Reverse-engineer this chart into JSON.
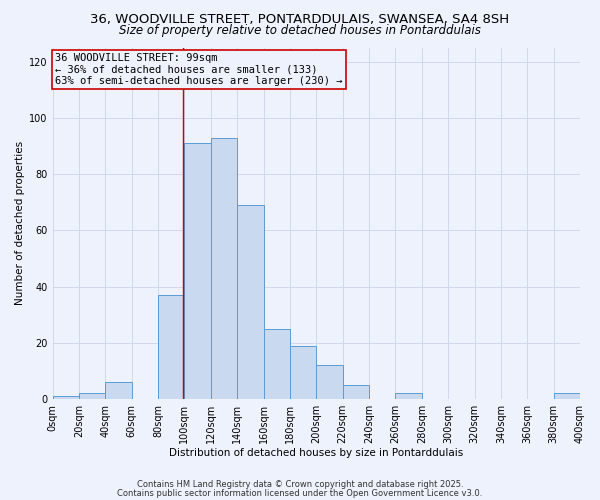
{
  "title1": "36, WOODVILLE STREET, PONTARDDULAIS, SWANSEA, SA4 8SH",
  "title2": "Size of property relative to detached houses in Pontarddulais",
  "xlabel": "Distribution of detached houses by size in Pontarddulais",
  "ylabel": "Number of detached properties",
  "bin_edges": [
    0,
    20,
    40,
    60,
    80,
    100,
    120,
    140,
    160,
    180,
    200,
    220,
    240,
    260,
    280,
    300,
    320,
    340,
    360,
    380,
    400
  ],
  "counts": [
    1,
    2,
    6,
    0,
    37,
    91,
    93,
    69,
    25,
    19,
    12,
    5,
    0,
    2,
    0,
    0,
    0,
    0,
    0,
    2
  ],
  "bar_fill": "#c9d9f0",
  "bar_edge": "#5b9bd5",
  "vline_x": 99,
  "vline_color": "#cc0000",
  "annotation_title": "36 WOODVILLE STREET: 99sqm",
  "annotation_line2": "← 36% of detached houses are smaller (133)",
  "annotation_line3": "63% of semi-detached houses are larger (230) →",
  "annotation_box_edge": "#cc0000",
  "ylim": [
    0,
    125
  ],
  "yticks": [
    0,
    20,
    40,
    60,
    80,
    100,
    120
  ],
  "xtick_labels": [
    "0sqm",
    "20sqm",
    "40sqm",
    "60sqm",
    "80sqm",
    "100sqm",
    "120sqm",
    "140sqm",
    "160sqm",
    "180sqm",
    "200sqm",
    "220sqm",
    "240sqm",
    "260sqm",
    "280sqm",
    "300sqm",
    "320sqm",
    "340sqm",
    "360sqm",
    "380sqm",
    "400sqm"
  ],
  "footer1": "Contains HM Land Registry data © Crown copyright and database right 2025.",
  "footer2": "Contains public sector information licensed under the Open Government Licence v3.0.",
  "bg_color": "#eef2fc",
  "grid_color": "#d0d8ea",
  "title1_fontsize": 9.5,
  "title2_fontsize": 8.5,
  "annotation_fontsize": 7.5,
  "axis_label_fontsize": 7.5,
  "tick_fontsize": 7,
  "footer_fontsize": 6
}
